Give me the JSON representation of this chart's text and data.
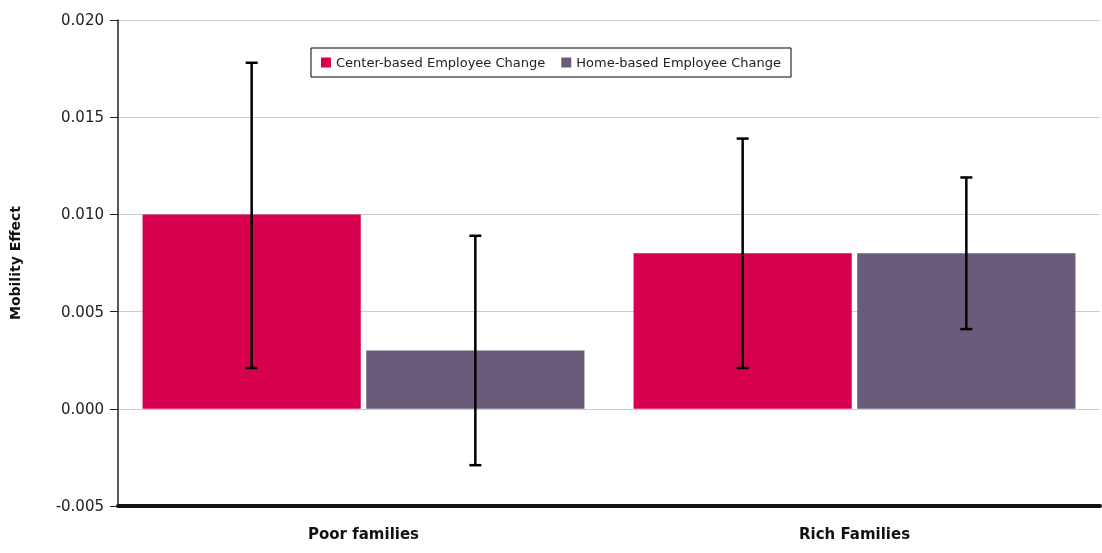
{
  "chart_data": {
    "type": "bar",
    "ylabel": "Mobility Effect",
    "categories": [
      "Poor families",
      "Rich Families"
    ],
    "series": [
      {
        "name": "Center-based Employee Change",
        "color": "#d6004f",
        "values": [
          0.01,
          0.008
        ],
        "errors": [
          [
            0.0021,
            0.0178
          ],
          [
            0.0021,
            0.0139
          ]
        ]
      },
      {
        "name": "Home-based Employee Change",
        "color": "#6b5b7b",
        "values": [
          0.003,
          0.008
        ],
        "errors": [
          [
            -0.0029,
            0.0089
          ],
          [
            0.0041,
            0.0119
          ]
        ]
      }
    ],
    "ylim": [
      -0.005,
      0.02
    ],
    "yticks": [
      {
        "value": -0.005,
        "label": "-0.005"
      },
      {
        "value": 0,
        "label": "0.000"
      },
      {
        "value": 0.005,
        "label": "0.005"
      },
      {
        "value": 0.01,
        "label": "0.010"
      },
      {
        "value": 0.015,
        "label": "0.015"
      },
      {
        "value": 0.02,
        "label": "0.020"
      }
    ],
    "grid": "y",
    "legend": "top"
  }
}
